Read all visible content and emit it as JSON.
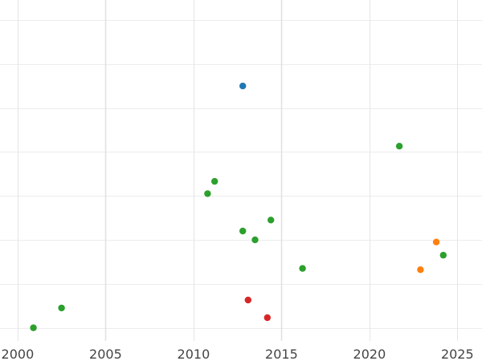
{
  "chart_data": {
    "type": "scatter",
    "title": "",
    "xlabel": "",
    "ylabel": "",
    "xlim": [
      1999.0,
      2026.4
    ],
    "ylim": [
      0,
      7.5
    ],
    "x_ticks": [
      2000,
      2005,
      2010,
      2015,
      2020,
      2025
    ],
    "x_tick_labels": [
      "2000",
      "2005",
      "2010",
      "2015",
      "2020",
      "2025"
    ],
    "y_gridlines": [
      0.3,
      1.3,
      2.3,
      3.3,
      4.3,
      5.3,
      6.3,
      7.3
    ],
    "grid": true,
    "legend": false,
    "series": [
      {
        "color": "#1f77b4",
        "points": [
          [
            2012.8,
            5.8
          ]
        ]
      },
      {
        "color": "#2ca02c",
        "points": [
          [
            2000.9,
            0.3
          ],
          [
            2002.5,
            0.75
          ],
          [
            2010.8,
            3.35
          ],
          [
            2011.2,
            3.63
          ],
          [
            2012.8,
            2.5
          ],
          [
            2013.5,
            2.3
          ],
          [
            2014.4,
            2.75
          ],
          [
            2016.2,
            1.65
          ],
          [
            2021.7,
            4.43
          ],
          [
            2024.2,
            1.95
          ]
        ]
      },
      {
        "color": "#ff7f0e",
        "points": [
          [
            2022.9,
            1.62
          ],
          [
            2023.8,
            2.25
          ]
        ]
      },
      {
        "color": "#d62728",
        "points": [
          [
            2013.1,
            0.93
          ],
          [
            2014.2,
            0.53
          ]
        ]
      }
    ]
  }
}
